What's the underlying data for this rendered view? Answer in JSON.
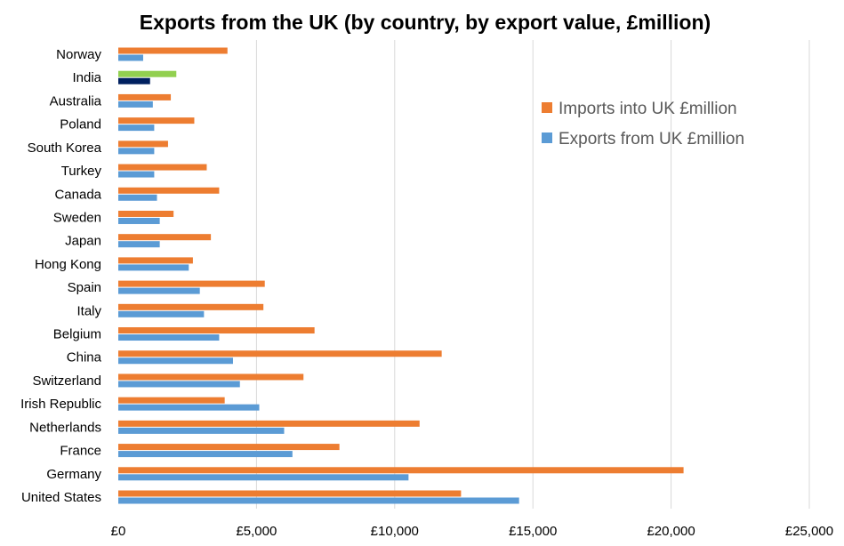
{
  "chart_data": {
    "type": "bar",
    "orientation": "horizontal",
    "title": "Exports from the UK (by country, by export value, £million)",
    "xlabel": "",
    "ylabel": "",
    "xlim": [
      0,
      25000
    ],
    "x_ticks": [
      0,
      5000,
      10000,
      15000,
      20000,
      25000
    ],
    "x_tick_labels": [
      "£0",
      "£5,000",
      "£10,000",
      "£15,000",
      "£20,000",
      "£25,000"
    ],
    "grid": "vertical",
    "legend_position": "top-right",
    "categories": [
      "Norway",
      "India",
      "Australia",
      "Poland",
      "South Korea",
      "Turkey",
      "Canada",
      "Sweden",
      "Japan",
      "Hong Kong",
      "Spain",
      "Italy",
      "Belgium",
      "China",
      "Switzerland",
      "Irish Republic",
      "Netherlands",
      "France",
      "Germany",
      "United States"
    ],
    "series": [
      {
        "name": "Imports into UK £million",
        "color": "#ed7d31",
        "values": [
          3950,
          2100,
          1900,
          2750,
          1800,
          3200,
          3650,
          2000,
          3350,
          2700,
          5300,
          5250,
          7100,
          11700,
          6700,
          3850,
          10900,
          8000,
          20450,
          12400
        ]
      },
      {
        "name": "Exports from UK £million",
        "color": "#5b9bd5",
        "values": [
          900,
          1150,
          1250,
          1300,
          1300,
          1300,
          1400,
          1500,
          1500,
          2550,
          2950,
          3100,
          3650,
          4150,
          4400,
          5100,
          6000,
          6300,
          10500,
          14500
        ]
      }
    ],
    "highlight": {
      "category": "India",
      "colors": [
        "#92d050",
        "#002060"
      ]
    }
  }
}
